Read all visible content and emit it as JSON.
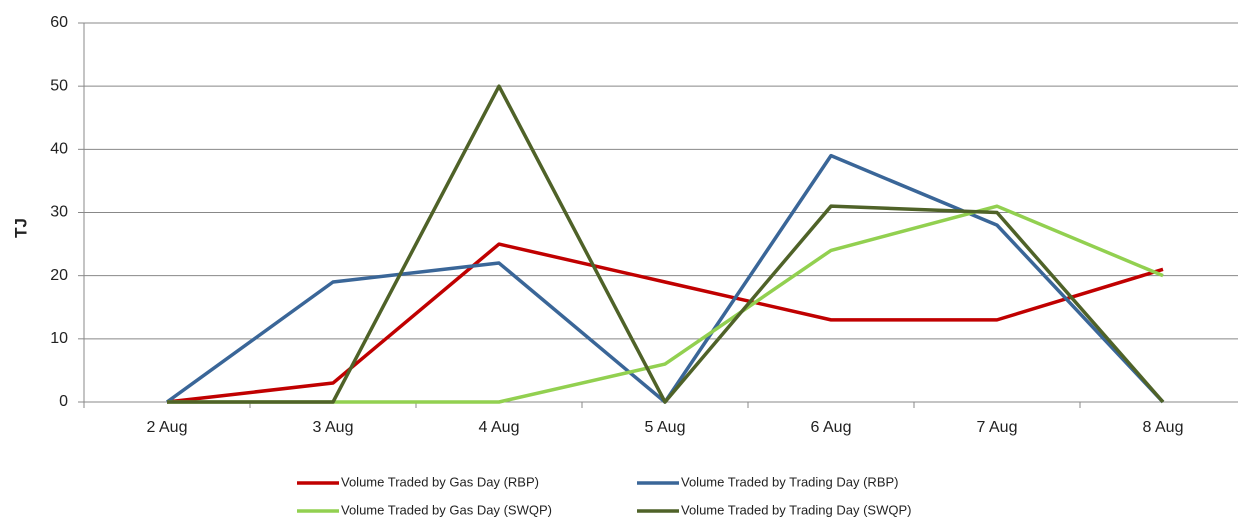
{
  "chart_data": {
    "type": "line",
    "y_label": "TJ",
    "categories": [
      "2 Aug",
      "3 Aug",
      "4 Aug",
      "5 Aug",
      "6 Aug",
      "7 Aug",
      "8 Aug"
    ],
    "series": [
      {
        "name": "Volume Traded by Gas Day (RBP)",
        "color": "#c00000",
        "values": [
          0,
          3,
          25,
          19,
          13,
          13,
          21
        ]
      },
      {
        "name": "Volume Traded by Trading Day (RBP)",
        "color": "#3a6698",
        "values": [
          0,
          19,
          22,
          0,
          39,
          28,
          0
        ]
      },
      {
        "name": "Volume Traded by Gas Day (SWQP)",
        "color": "#92d050",
        "values": [
          0,
          0,
          0,
          6,
          24,
          31,
          20
        ]
      },
      {
        "name": "Volume Traded by Trading Day (SWQP)",
        "color": "#4f6228",
        "values": [
          0,
          0,
          50,
          0,
          31,
          30,
          0
        ]
      }
    ],
    "ylim": [
      0,
      60
    ],
    "yticks": [
      0,
      10,
      20,
      30,
      40,
      50,
      60
    ],
    "grid": true,
    "legend": "bottom"
  }
}
